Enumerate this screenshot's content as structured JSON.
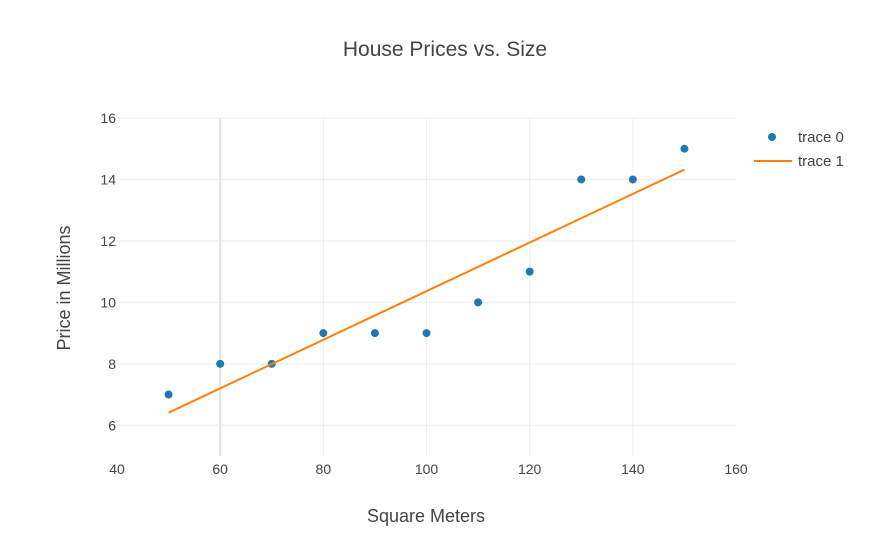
{
  "chart_data": {
    "type": "scatter",
    "title": "House Prices vs. Size",
    "xlabel": "Square Meters",
    "ylabel": "Price in Millions",
    "xlim": [
      40,
      160
    ],
    "ylim": [
      5,
      16
    ],
    "x_ticks": [
      40,
      60,
      80,
      100,
      120,
      140,
      160
    ],
    "y_ticks": [
      6,
      8,
      10,
      12,
      14,
      16
    ],
    "grid": true,
    "legend_position": "top-right",
    "series": [
      {
        "name": "trace 0",
        "mode": "markers",
        "color": "#1f77b4",
        "x": [
          50,
          60,
          70,
          80,
          90,
          100,
          110,
          120,
          130,
          140,
          150
        ],
        "y": [
          7,
          8,
          8,
          9,
          9,
          9,
          10,
          11,
          14,
          14,
          15
        ]
      },
      {
        "name": "trace 1",
        "mode": "lines",
        "color": "#ff7f0e",
        "x": [
          50,
          150
        ],
        "y": [
          6.41,
          14.32
        ]
      }
    ]
  }
}
